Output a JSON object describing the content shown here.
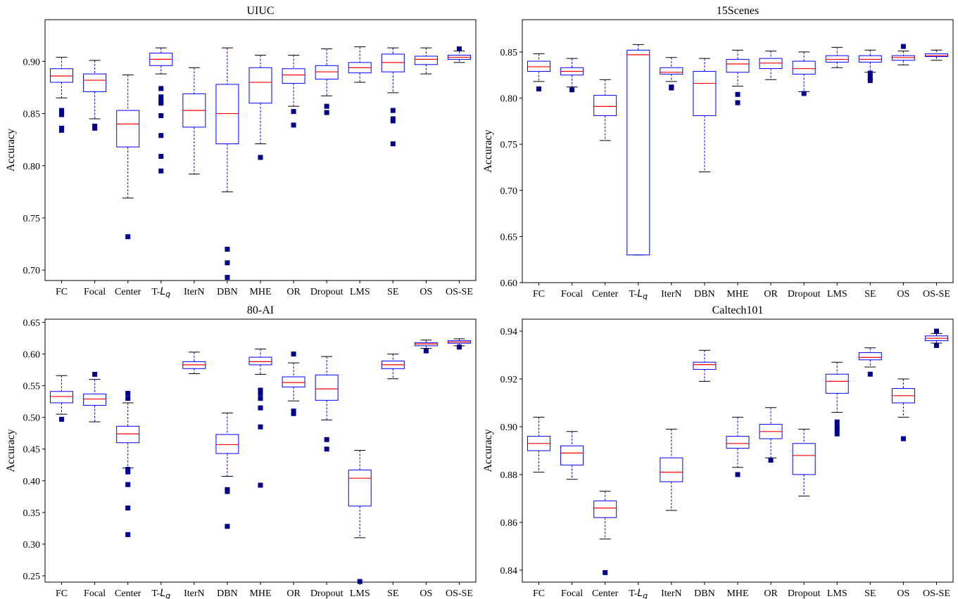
{
  "chart_data": [
    {
      "type": "box",
      "title": "UIUC",
      "ylabel": "Accuracy",
      "ylim": [
        0.69,
        0.94
      ],
      "yticks": [
        0.7,
        0.75,
        0.8,
        0.85,
        0.9
      ],
      "categories": [
        "FC",
        "Focal",
        "Center",
        "T-Lq",
        "IterN",
        "DBN",
        "MHE",
        "OR",
        "Dropout",
        "LMS",
        "SE",
        "OS",
        "OS-SE"
      ],
      "boxes": [
        {
          "min": 0.865,
          "q1": 0.88,
          "median": 0.886,
          "q3": 0.893,
          "max": 0.904,
          "outliers": [
            0.853,
            0.851,
            0.849,
            0.836,
            0.834
          ]
        },
        {
          "min": 0.845,
          "q1": 0.871,
          "median": 0.882,
          "q3": 0.888,
          "max": 0.901,
          "outliers": [
            0.838,
            0.836
          ]
        },
        {
          "min": 0.769,
          "q1": 0.818,
          "median": 0.84,
          "q3": 0.853,
          "max": 0.887,
          "outliers": [
            0.732
          ]
        },
        {
          "min": 0.888,
          "q1": 0.896,
          "median": 0.902,
          "q3": 0.908,
          "max": 0.913,
          "outliers": [
            0.874,
            0.866,
            0.862,
            0.86,
            0.848,
            0.829,
            0.809,
            0.795
          ]
        },
        {
          "min": 0.792,
          "q1": 0.837,
          "median": 0.853,
          "q3": 0.869,
          "max": 0.894,
          "outliers": []
        },
        {
          "min": 0.775,
          "q1": 0.821,
          "median": 0.85,
          "q3": 0.878,
          "max": 0.913,
          "outliers": [
            0.72,
            0.707,
            0.693
          ]
        },
        {
          "min": 0.821,
          "q1": 0.86,
          "median": 0.88,
          "q3": 0.894,
          "max": 0.906,
          "outliers": [
            0.808
          ]
        },
        {
          "min": 0.857,
          "q1": 0.879,
          "median": 0.887,
          "q3": 0.893,
          "max": 0.906,
          "outliers": [
            0.852,
            0.839
          ]
        },
        {
          "min": 0.867,
          "q1": 0.883,
          "median": 0.89,
          "q3": 0.896,
          "max": 0.912,
          "outliers": [
            0.857,
            0.851
          ]
        },
        {
          "min": 0.88,
          "q1": 0.889,
          "median": 0.894,
          "q3": 0.899,
          "max": 0.914,
          "outliers": []
        },
        {
          "min": 0.87,
          "q1": 0.89,
          "median": 0.899,
          "q3": 0.907,
          "max": 0.913,
          "outliers": [
            0.853,
            0.845,
            0.843,
            0.821
          ]
        },
        {
          "min": 0.888,
          "q1": 0.897,
          "median": 0.902,
          "q3": 0.905,
          "max": 0.913,
          "outliers": []
        },
        {
          "min": 0.899,
          "q1": 0.902,
          "median": 0.904,
          "q3": 0.906,
          "max": 0.91,
          "outliers": [
            0.912
          ]
        }
      ]
    },
    {
      "type": "box",
      "title": "15Scenes",
      "ylabel": "Accuracy",
      "ylim": [
        0.6,
        0.885
      ],
      "yticks": [
        0.6,
        0.65,
        0.7,
        0.75,
        0.8,
        0.85
      ],
      "categories": [
        "FC",
        "Focal",
        "Center",
        "T-Lq",
        "IterN",
        "DBN",
        "MHE",
        "OR",
        "Dropout",
        "LMS",
        "SE",
        "OS",
        "OS-SE"
      ],
      "boxes": [
        {
          "min": 0.818,
          "q1": 0.829,
          "median": 0.834,
          "q3": 0.84,
          "max": 0.848,
          "outliers": [
            0.81
          ]
        },
        {
          "min": 0.812,
          "q1": 0.825,
          "median": 0.829,
          "q3": 0.833,
          "max": 0.843,
          "outliers": [
            0.809
          ]
        },
        {
          "min": 0.754,
          "q1": 0.781,
          "median": 0.791,
          "q3": 0.803,
          "max": 0.82,
          "outliers": []
        },
        {
          "min": 0.63,
          "q1": 0.63,
          "median": 0.847,
          "q3": 0.852,
          "max": 0.858,
          "outliers": []
        },
        {
          "min": 0.818,
          "q1": 0.826,
          "median": 0.828,
          "q3": 0.833,
          "max": 0.844,
          "outliers": [
            0.812,
            0.811
          ]
        },
        {
          "min": 0.72,
          "q1": 0.781,
          "median": 0.816,
          "q3": 0.829,
          "max": 0.843,
          "outliers": []
        },
        {
          "min": 0.813,
          "q1": 0.828,
          "median": 0.837,
          "q3": 0.842,
          "max": 0.852,
          "outliers": [
            0.804,
            0.795
          ]
        },
        {
          "min": 0.82,
          "q1": 0.832,
          "median": 0.838,
          "q3": 0.843,
          "max": 0.851,
          "outliers": []
        },
        {
          "min": 0.807,
          "q1": 0.826,
          "median": 0.832,
          "q3": 0.84,
          "max": 0.85,
          "outliers": [
            0.805
          ]
        },
        {
          "min": 0.833,
          "q1": 0.839,
          "median": 0.842,
          "q3": 0.846,
          "max": 0.855,
          "outliers": []
        },
        {
          "min": 0.828,
          "q1": 0.839,
          "median": 0.842,
          "q3": 0.846,
          "max": 0.852,
          "outliers": [
            0.827,
            0.822,
            0.819
          ]
        },
        {
          "min": 0.836,
          "q1": 0.841,
          "median": 0.844,
          "q3": 0.846,
          "max": 0.851,
          "outliers": [
            0.856
          ]
        },
        {
          "min": 0.841,
          "q1": 0.845,
          "median": 0.846,
          "q3": 0.848,
          "max": 0.852,
          "outliers": []
        }
      ]
    },
    {
      "type": "box",
      "title": "80-AI",
      "ylabel": "Accuracy",
      "ylim": [
        0.24,
        0.655
      ],
      "yticks": [
        0.25,
        0.3,
        0.35,
        0.4,
        0.45,
        0.5,
        0.55,
        0.6,
        0.65
      ],
      "categories": [
        "FC",
        "Focal",
        "Center",
        "T-Lq",
        "IterN",
        "DBN",
        "MHE",
        "OR",
        "Dropout",
        "LMS",
        "SE",
        "OS",
        "OS-SE"
      ],
      "boxes": [
        {
          "min": 0.505,
          "q1": 0.523,
          "median": 0.533,
          "q3": 0.541,
          "max": 0.566,
          "outliers": [
            0.497
          ]
        },
        {
          "min": 0.493,
          "q1": 0.519,
          "median": 0.529,
          "q3": 0.537,
          "max": 0.56,
          "outliers": [
            0.568
          ]
        },
        {
          "min": 0.42,
          "q1": 0.46,
          "median": 0.474,
          "q3": 0.486,
          "max": 0.523,
          "outliers": [
            0.538,
            0.53,
            0.418,
            0.414,
            0.394,
            0.357,
            0.315
          ]
        },
        null,
        {
          "min": 0.569,
          "q1": 0.577,
          "median": 0.583,
          "q3": 0.588,
          "max": 0.603,
          "outliers": []
        },
        {
          "min": 0.407,
          "q1": 0.443,
          "median": 0.457,
          "q3": 0.473,
          "max": 0.507,
          "outliers": [
            0.386,
            0.383,
            0.328
          ]
        },
        {
          "min": 0.568,
          "q1": 0.583,
          "median": 0.588,
          "q3": 0.595,
          "max": 0.608,
          "outliers": [
            0.543,
            0.538,
            0.53,
            0.515,
            0.485,
            0.393
          ]
        },
        {
          "min": 0.526,
          "q1": 0.548,
          "median": 0.555,
          "q3": 0.564,
          "max": 0.586,
          "outliers": [
            0.6,
            0.51,
            0.506
          ]
        },
        {
          "min": 0.496,
          "q1": 0.527,
          "median": 0.545,
          "q3": 0.567,
          "max": 0.596,
          "outliers": [
            0.465,
            0.45
          ]
        },
        {
          "min": 0.31,
          "q1": 0.36,
          "median": 0.404,
          "q3": 0.417,
          "max": 0.448,
          "outliers": [
            0.241
          ]
        },
        {
          "min": 0.561,
          "q1": 0.577,
          "median": 0.583,
          "q3": 0.589,
          "max": 0.6,
          "outliers": []
        },
        {
          "min": 0.609,
          "q1": 0.613,
          "median": 0.616,
          "q3": 0.618,
          "max": 0.622,
          "outliers": [
            0.605
          ]
        },
        {
          "min": 0.613,
          "q1": 0.617,
          "median": 0.619,
          "q3": 0.621,
          "max": 0.624,
          "outliers": [
            0.611
          ]
        }
      ]
    },
    {
      "type": "box",
      "title": "Caltech101",
      "ylabel": "Accuracy",
      "ylim": [
        0.835,
        0.945
      ],
      "yticks": [
        0.84,
        0.86,
        0.88,
        0.9,
        0.92,
        0.94
      ],
      "categories": [
        "FC",
        "Focal",
        "Center",
        "T-Lq",
        "IterN",
        "DBN",
        "MHE",
        "OR",
        "Dropout",
        "LMS",
        "SE",
        "OS",
        "OS-SE"
      ],
      "boxes": [
        {
          "min": 0.881,
          "q1": 0.89,
          "median": 0.893,
          "q3": 0.896,
          "max": 0.904,
          "outliers": []
        },
        {
          "min": 0.878,
          "q1": 0.884,
          "median": 0.889,
          "q3": 0.892,
          "max": 0.898,
          "outliers": []
        },
        {
          "min": 0.853,
          "q1": 0.862,
          "median": 0.866,
          "q3": 0.869,
          "max": 0.873,
          "outliers": [
            0.839
          ]
        },
        null,
        {
          "min": 0.865,
          "q1": 0.877,
          "median": 0.881,
          "q3": 0.887,
          "max": 0.899,
          "outliers": []
        },
        {
          "min": 0.919,
          "q1": 0.924,
          "median": 0.926,
          "q3": 0.927,
          "max": 0.932,
          "outliers": []
        },
        {
          "min": 0.883,
          "q1": 0.891,
          "median": 0.893,
          "q3": 0.896,
          "max": 0.904,
          "outliers": [
            0.88
          ]
        },
        {
          "min": 0.887,
          "q1": 0.895,
          "median": 0.898,
          "q3": 0.901,
          "max": 0.908,
          "outliers": [
            0.886
          ]
        },
        {
          "min": 0.871,
          "q1": 0.88,
          "median": 0.888,
          "q3": 0.893,
          "max": 0.899,
          "outliers": []
        },
        {
          "min": 0.906,
          "q1": 0.914,
          "median": 0.919,
          "q3": 0.922,
          "max": 0.927,
          "outliers": [
            0.902,
            0.9,
            0.899,
            0.897
          ]
        },
        {
          "min": 0.925,
          "q1": 0.928,
          "median": 0.929,
          "q3": 0.931,
          "max": 0.933,
          "outliers": [
            0.922
          ]
        },
        {
          "min": 0.904,
          "q1": 0.91,
          "median": 0.913,
          "q3": 0.916,
          "max": 0.92,
          "outliers": [
            0.895
          ]
        },
        {
          "min": 0.935,
          "q1": 0.936,
          "median": 0.937,
          "q3": 0.938,
          "max": 0.939,
          "outliers": [
            0.94,
            0.934
          ]
        }
      ]
    }
  ],
  "colors": {
    "box": "#0000ff",
    "median": "#ff0000",
    "whisker": "#0000ff",
    "cap": "#000000",
    "outlier": "#00008b",
    "axes": "#000000"
  }
}
